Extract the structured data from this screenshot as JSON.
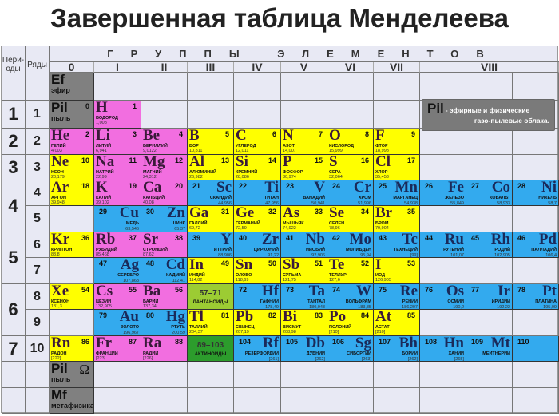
{
  "title": "Завершенная таблица Менделеева",
  "header": {
    "periods": "Пери-оды",
    "rows": "Ряды",
    "groups_label": "ГРУППЫ ЭЛЕМЕНТОВ",
    "groups": [
      "0",
      "I",
      "II",
      "III",
      "IV",
      "V",
      "VI",
      "VII",
      "VIII"
    ]
  },
  "periods": [
    {
      "label": "1",
      "rows": [
        1
      ]
    },
    {
      "label": "2",
      "rows": [
        2
      ]
    },
    {
      "label": "3",
      "rows": [
        3
      ]
    },
    {
      "label": "4",
      "rows": [
        4,
        5
      ]
    },
    {
      "label": "5",
      "rows": [
        6,
        7
      ]
    },
    {
      "label": "6",
      "rows": [
        8,
        9
      ]
    },
    {
      "label": "7",
      "rows": [
        10
      ]
    }
  ],
  "colors": {
    "s": "#f26ee0",
    "p": "#ffff00",
    "d": "#33aaee",
    "ether": "#808080",
    "lanthanides": "#9ccc33",
    "actinides": "#2c9c2c",
    "background": "#e8e9f4"
  },
  "note": {
    "symbol": "Pil",
    "text1": "- эфирные и физические",
    "text2": "газо-пылевые облака."
  },
  "rows": [
    {
      "label": "",
      "cells": [
        {
          "s": "Ef",
          "n": "",
          "name": "эфир",
          "t": "ether"
        }
      ]
    },
    {
      "label": "1",
      "cells": [
        {
          "s": "Pil",
          "n": "0",
          "name": "пыль",
          "t": "ether"
        },
        {
          "s": "H",
          "n": "1",
          "name": "ВОДОРОД",
          "m": "1,008",
          "t": "s"
        }
      ]
    },
    {
      "label": "2",
      "cells": [
        {
          "s": "He",
          "n": "2",
          "name": "ГЕЛИЙ",
          "m": "4,003",
          "t": "s"
        },
        {
          "s": "Li",
          "n": "3",
          "name": "ЛИТИЙ",
          "m": "6,941",
          "t": "s"
        },
        {
          "s": "Be",
          "n": "4",
          "name": "БЕРИЛЛИЙ",
          "m": "9,0122",
          "t": "s"
        },
        {
          "s": "B",
          "n": "5",
          "name": "БОР",
          "m": "10,811",
          "t": "p"
        },
        {
          "s": "C",
          "n": "6",
          "name": "УГЛЕРОД",
          "m": "12,011",
          "t": "p"
        },
        {
          "s": "N",
          "n": "7",
          "name": "АЗОТ",
          "m": "14,007",
          "t": "p"
        },
        {
          "s": "O",
          "n": "8",
          "name": "КИСЛОРОД",
          "m": "15,999",
          "t": "p"
        },
        {
          "s": "F",
          "n": "9",
          "name": "ФТОР",
          "m": "18,998",
          "t": "p"
        }
      ]
    },
    {
      "label": "3",
      "cells": [
        {
          "s": "Ne",
          "n": "10",
          "name": "НЕОН",
          "m": "20,179",
          "t": "p"
        },
        {
          "s": "Na",
          "n": "11",
          "name": "НАТРИЙ",
          "m": "22,99",
          "t": "s"
        },
        {
          "s": "Mg",
          "n": "12",
          "name": "МАГНИЙ",
          "m": "24,312",
          "t": "s"
        },
        {
          "s": "Al",
          "n": "13",
          "name": "АЛЮМИНИЙ",
          "m": "26,982",
          "t": "p"
        },
        {
          "s": "Si",
          "n": "14",
          "name": "КРЕМНИЙ",
          "m": "28,086",
          "t": "p"
        },
        {
          "s": "P",
          "n": "15",
          "name": "ФОСФОР",
          "m": "30,974",
          "t": "p"
        },
        {
          "s": "S",
          "n": "16",
          "name": "СЕРА",
          "m": "32,064",
          "t": "p"
        },
        {
          "s": "Cl",
          "n": "17",
          "name": "ХЛОР",
          "m": "35,453",
          "t": "p"
        }
      ]
    },
    {
      "label": "4",
      "cells": [
        {
          "s": "Ar",
          "n": "18",
          "name": "АРГОН",
          "m": "39,948",
          "t": "p"
        },
        {
          "s": "K",
          "n": "19",
          "name": "КАЛИЙ",
          "m": "39,102",
          "t": "s"
        },
        {
          "s": "Ca",
          "n": "20",
          "name": "КАЛЬЦИЙ",
          "m": "40,08",
          "t": "s"
        },
        {
          "s": "Sc",
          "n": "21",
          "name": "СКАНДИЙ",
          "m": "44,956",
          "t": "d"
        },
        {
          "s": "Ti",
          "n": "22",
          "name": "ТИТАН",
          "m": "47,956",
          "t": "d"
        },
        {
          "s": "V",
          "n": "23",
          "name": "ВАНАДИЙ",
          "m": "50,941",
          "t": "d"
        },
        {
          "s": "Cr",
          "n": "24",
          "name": "ХРОМ",
          "m": "51,996",
          "t": "d"
        },
        {
          "s": "Mn",
          "n": "25",
          "name": "МАРГАНЕЦ",
          "m": "54,938",
          "t": "d"
        },
        {
          "s": "Fe",
          "n": "26",
          "name": "ЖЕЛЕЗО",
          "m": "55,849",
          "t": "d"
        },
        {
          "s": "Co",
          "n": "27",
          "name": "КОБАЛЬТ",
          "m": "58,933",
          "t": "d"
        },
        {
          "s": "Ni",
          "n": "28",
          "name": "НИКЕЛЬ",
          "m": "58,7",
          "t": "d"
        }
      ]
    },
    {
      "label": "5",
      "cells": [
        null,
        {
          "s": "Cu",
          "n": "29",
          "name": "МЕДЬ",
          "m": "63,546",
          "t": "d"
        },
        {
          "s": "Zn",
          "n": "30",
          "name": "ЦИНК",
          "m": "65,37",
          "t": "d"
        },
        {
          "s": "Ga",
          "n": "31",
          "name": "ГАЛЛИЙ",
          "m": "69,72",
          "t": "p"
        },
        {
          "s": "Ge",
          "n": "32",
          "name": "ГЕРМАНИЙ",
          "m": "72,59",
          "t": "p"
        },
        {
          "s": "As",
          "n": "33",
          "name": "МЫШЬЯК",
          "m": "74,922",
          "t": "p"
        },
        {
          "s": "Se",
          "n": "34",
          "name": "СЕЛЕН",
          "m": "78,96",
          "t": "p"
        },
        {
          "s": "Br",
          "n": "35",
          "name": "БРОМ",
          "m": "79,904",
          "t": "p"
        }
      ]
    },
    {
      "label": "6",
      "cells": [
        {
          "s": "Kr",
          "n": "36",
          "name": "КРИПТОН",
          "m": "83,8",
          "t": "p"
        },
        {
          "s": "Rb",
          "n": "37",
          "name": "РУБИДИЙ",
          "m": "85,468",
          "t": "s"
        },
        {
          "s": "Sr",
          "n": "38",
          "name": "СТРОНЦИЙ",
          "m": "87,62",
          "t": "s"
        },
        {
          "s": "Y",
          "n": "39",
          "name": "ИТТРИЙ",
          "m": "88,906",
          "t": "d"
        },
        {
          "s": "Zr",
          "n": "40",
          "name": "ЦИРКОНИЙ",
          "m": "91,22",
          "t": "d"
        },
        {
          "s": "Nb",
          "n": "41",
          "name": "НИОБИЙ",
          "m": "92,906",
          "t": "d"
        },
        {
          "s": "Mo",
          "n": "42",
          "name": "МОЛИБДЕН",
          "m": "95,94",
          "t": "d"
        },
        {
          "s": "Tc",
          "n": "43",
          "name": "ТЕХНЕЦИЙ",
          "m": "[99]",
          "t": "d"
        },
        {
          "s": "Ru",
          "n": "44",
          "name": "РУТЕНИЙ",
          "m": "101,07",
          "t": "d"
        },
        {
          "s": "Rh",
          "n": "45",
          "name": "РОДИЙ",
          "m": "102,905",
          "t": "d"
        },
        {
          "s": "Pd",
          "n": "46",
          "name": "ПАЛЛАДИЙ",
          "m": "106,4",
          "t": "d"
        }
      ]
    },
    {
      "label": "7",
      "cells": [
        null,
        {
          "s": "Ag",
          "n": "47",
          "name": "СЕРЕБРО",
          "m": "107,868",
          "t": "d"
        },
        {
          "s": "Cd",
          "n": "48",
          "name": "КАДМИЙ",
          "m": "112,41",
          "t": "d"
        },
        {
          "s": "In",
          "n": "49",
          "name": "ИНДИЙ",
          "m": "114,82",
          "t": "p"
        },
        {
          "s": "Sn",
          "n": "50",
          "name": "ОЛОВО",
          "m": "118,69",
          "t": "p"
        },
        {
          "s": "Sb",
          "n": "51",
          "name": "СУРЬМА",
          "m": "121,75",
          "t": "p"
        },
        {
          "s": "Te",
          "n": "52",
          "name": "ТЕЛЛУР",
          "m": "127,6",
          "t": "p"
        },
        {
          "s": "I",
          "n": "53",
          "name": "ИОД",
          "m": "126,905",
          "t": "p"
        }
      ]
    },
    {
      "label": "8",
      "cells": [
        {
          "s": "Xe",
          "n": "54",
          "name": "КСЕНОН",
          "m": "131,3",
          "t": "p"
        },
        {
          "s": "Cs",
          "n": "55",
          "name": "ЦЕЗИЙ",
          "m": "132,905",
          "t": "s"
        },
        {
          "s": "Ba",
          "n": "56",
          "name": "БАРИЙ",
          "m": "137,34",
          "t": "s"
        },
        {
          "range": "57–71",
          "name": "ЛАНТАНОИДЫ",
          "t": "lanthanides"
        },
        {
          "s": "Hf",
          "n": "72",
          "name": "ГАФНИЙ",
          "m": "178,49",
          "t": "d"
        },
        {
          "s": "Ta",
          "n": "73",
          "name": "ТАНТАЛ",
          "m": "180,948",
          "t": "d"
        },
        {
          "s": "W",
          "n": "74",
          "name": "ВОЛЬФРАМ",
          "m": "183,85",
          "t": "d"
        },
        {
          "s": "Re",
          "n": "75",
          "name": "РЕНИЙ",
          "m": "186,207",
          "t": "d"
        },
        {
          "s": "Os",
          "n": "76",
          "name": "ОСМИЙ",
          "m": "190,2",
          "t": "d"
        },
        {
          "s": "Ir",
          "n": "77",
          "name": "ИРИДИЙ",
          "m": "192,22",
          "t": "d"
        },
        {
          "s": "Pt",
          "n": "78",
          "name": "ПЛАТИНА",
          "m": "195,09",
          "t": "d"
        }
      ]
    },
    {
      "label": "9",
      "cells": [
        null,
        {
          "s": "Au",
          "n": "79",
          "name": "ЗОЛОТО",
          "m": "196,967",
          "t": "d"
        },
        {
          "s": "Hg",
          "n": "80",
          "name": "РТУТЬ",
          "m": "200,59",
          "t": "d"
        },
        {
          "s": "Tl",
          "n": "81",
          "name": "ТАЛЛИЙ",
          "m": "204,37",
          "t": "p"
        },
        {
          "s": "Pb",
          "n": "82",
          "name": "СВИНЕЦ",
          "m": "207,19",
          "t": "p"
        },
        {
          "s": "Bi",
          "n": "83",
          "name": "ВИСМУТ",
          "m": "208,98",
          "t": "p"
        },
        {
          "s": "Po",
          "n": "84",
          "name": "ПОЛОНИЙ",
          "m": "[210]",
          "t": "p"
        },
        {
          "s": "At",
          "n": "85",
          "name": "АСТАТ",
          "m": "[210]",
          "t": "p"
        }
      ]
    },
    {
      "label": "10",
      "cells": [
        {
          "s": "Rn",
          "n": "86",
          "name": "РАДОН",
          "m": "[222]",
          "t": "p"
        },
        {
          "s": "Fr",
          "n": "87",
          "name": "ФРАНЦИЙ",
          "m": "[223]",
          "t": "s"
        },
        {
          "s": "Ra",
          "n": "88",
          "name": "РАДИЙ",
          "m": "[226]",
          "t": "s"
        },
        {
          "range": "89–103",
          "name": "АКТИНОИДЫ",
          "t": "actinides"
        },
        {
          "s": "Rf",
          "n": "104",
          "name": "РЕЗЕРФОРДИЙ",
          "m": "[261]",
          "t": "d"
        },
        {
          "s": "Db",
          "n": "105",
          "name": "ДУБНИЙ",
          "m": "[262]",
          "t": "d"
        },
        {
          "s": "Sg",
          "n": "106",
          "name": "СИБОРГИЙ",
          "m": "[263]",
          "t": "d"
        },
        {
          "s": "Bh",
          "n": "107",
          "name": "БОРИЙ",
          "m": "[262]",
          "t": "d"
        },
        {
          "s": "Hn",
          "n": "108",
          "name": "ХАНИЙ",
          "m": "[265]",
          "t": "d"
        },
        {
          "s": "Mt",
          "n": "109",
          "name": "МЕЙТНЕРИЙ",
          "m": "",
          "t": "d"
        },
        {
          "s": "",
          "n": "110",
          "name": "",
          "m": "",
          "t": "d"
        }
      ]
    },
    {
      "label": "",
      "cells": [
        {
          "s": "Pil",
          "n": "Ω",
          "name": "пыль",
          "t": "ether"
        }
      ]
    },
    {
      "label": "",
      "cells": [
        {
          "s": "Mf",
          "n": "",
          "name": "метафизика",
          "t": "ether"
        }
      ]
    }
  ]
}
